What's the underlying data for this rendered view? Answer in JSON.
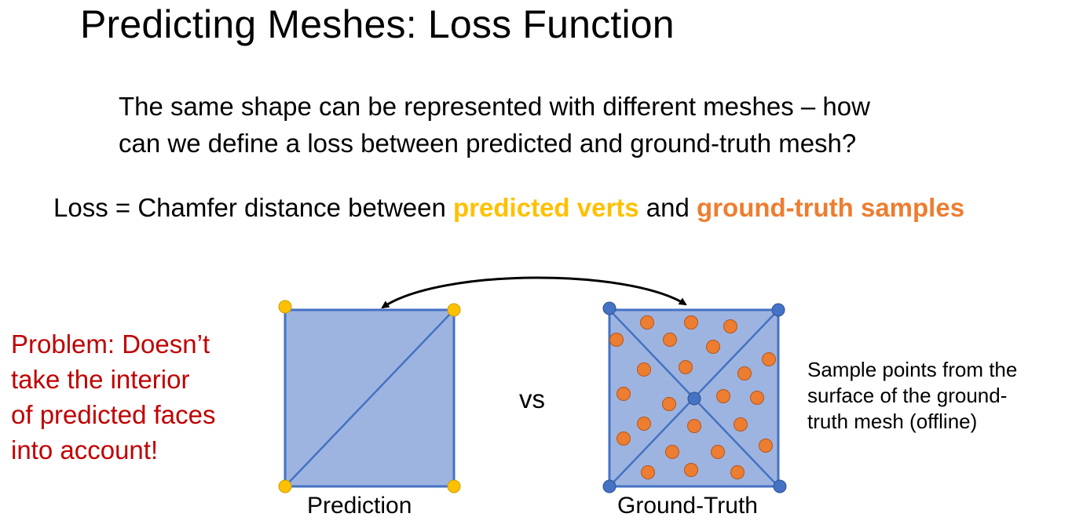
{
  "slide": {
    "title": "Predicting Meshes: Loss Function",
    "question_lines": [
      "The same shape can be represented with different meshes – how",
      "can we define a loss between predicted and ground-truth mesh?"
    ],
    "loss": {
      "prefix": "Loss = Chamfer distance between ",
      "pred_term": "predicted verts",
      "middle": " and ",
      "gt_term": "ground-truth samples"
    },
    "problem_lines": [
      "Problem: Doesn’t",
      "take the interior",
      "of predicted faces",
      "into account!"
    ],
    "sample_note_lines": [
      "Sample points from the",
      "surface of the ground-",
      "truth mesh (offline)"
    ],
    "vs_label": "vs",
    "prediction_caption": "Prediction",
    "ground_truth_caption": "Ground-Truth"
  },
  "colors": {
    "predicted_verts": "#FFC000",
    "ground_truth_samples": "#ED7D31",
    "problem_text": "#C00000",
    "face_fill": "#9EB4E0",
    "mesh_edge": "#4472C4",
    "gt_vertex": "#4472C4",
    "arrow": "#000000"
  },
  "icons": {
    "arrow": "double-headed-curved-arrow"
  }
}
